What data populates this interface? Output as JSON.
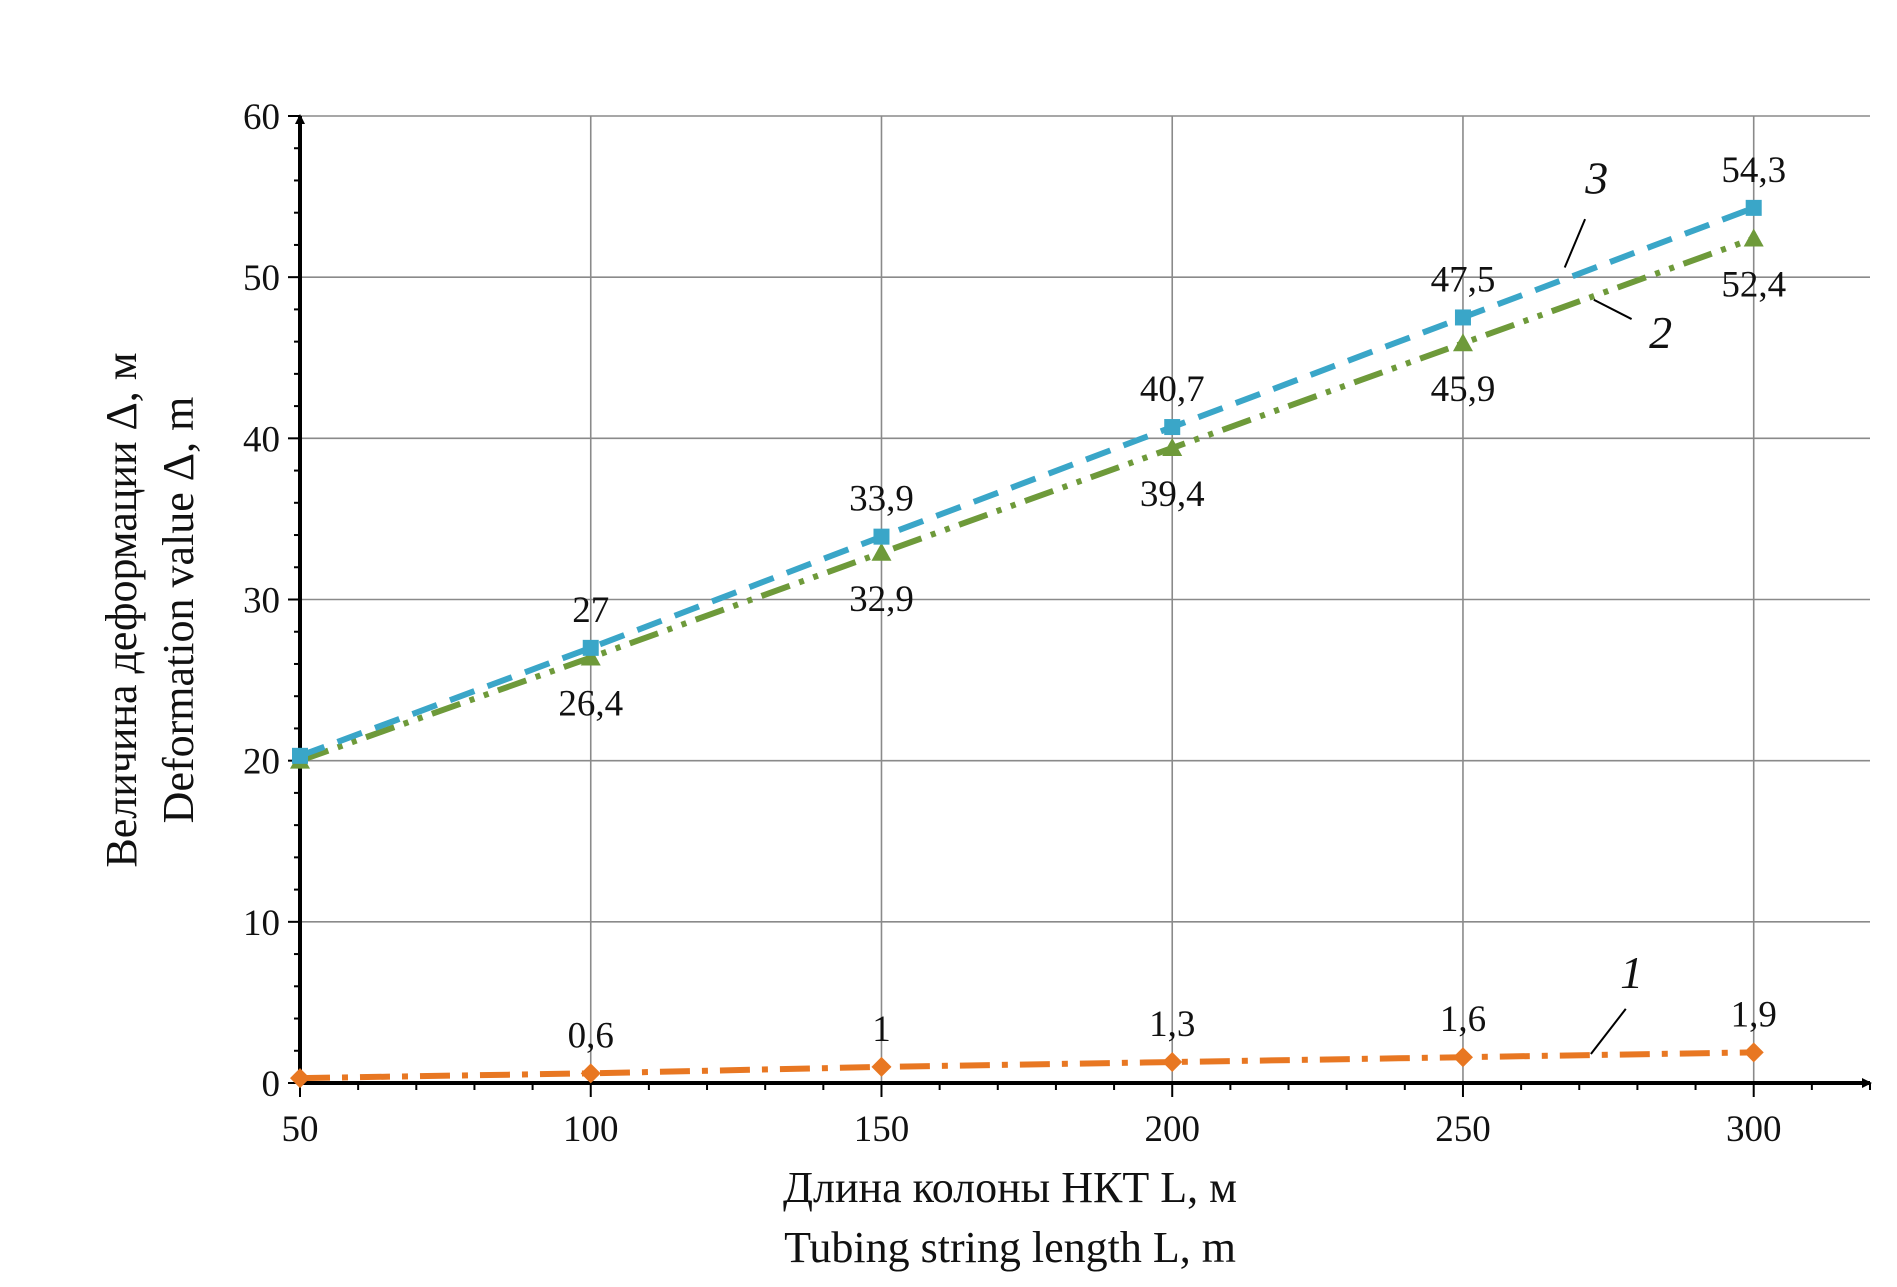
{
  "chart_data": {
    "type": "line",
    "title": "",
    "xlabel_ru": "Длина колоны НКТ L, м",
    "xlabel_en": "Tubing string length L, m",
    "ylabel_ru": "Величина деформации Δ, м",
    "ylabel_en": "Deformation value Δ, m",
    "x": [
      50,
      100,
      150,
      200,
      250,
      300
    ],
    "xlim": [
      50,
      320
    ],
    "ylim": [
      0,
      60
    ],
    "xticks": [
      50,
      100,
      150,
      200,
      250,
      300
    ],
    "yticks": [
      0,
      10,
      20,
      30,
      40,
      50,
      60
    ],
    "grid": true,
    "series": [
      {
        "name": "1",
        "color": "#e87722",
        "marker": "diamond",
        "style": "dash-dot",
        "values": [
          0.3,
          0.6,
          1,
          1.3,
          1.6,
          1.9
        ],
        "labels": [
          "",
          "0,6",
          "1",
          "1,3",
          "1,6",
          "1,9"
        ]
      },
      {
        "name": "2",
        "color": "#6e9a3a",
        "marker": "triangle",
        "style": "dash-dot-dot",
        "values": [
          20,
          26.4,
          32.9,
          39.4,
          45.9,
          52.4
        ],
        "labels": [
          "",
          "26,4",
          "32,9",
          "39,4",
          "45,9",
          "52,4"
        ]
      },
      {
        "name": "3",
        "color": "#3aa6c8",
        "marker": "square",
        "style": "dash",
        "values": [
          20.3,
          27,
          33.9,
          40.7,
          47.5,
          54.3
        ],
        "labels": [
          "",
          "27",
          "33,9",
          "40,7",
          "47,5",
          "54,3"
        ]
      }
    ]
  }
}
